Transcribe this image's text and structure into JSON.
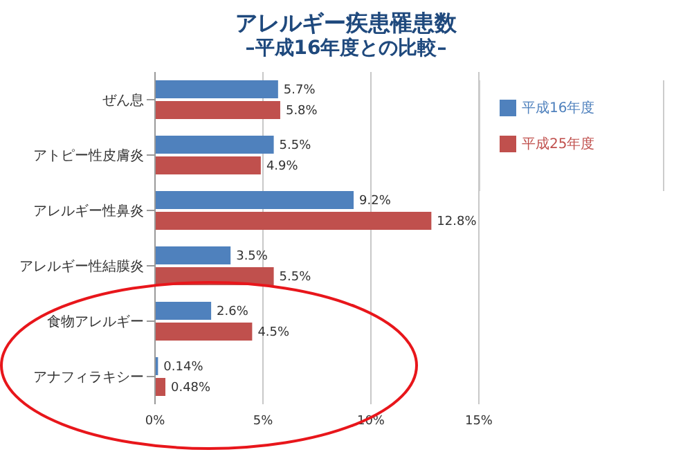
{
  "chart_data": {
    "type": "bar",
    "orientation": "horizontal",
    "title": "アレルギー疾患罹患数",
    "subtitle": "–平成16年度との比較–",
    "categories": [
      "ぜん息",
      "アトピー性皮膚炎",
      "アレルギー性鼻炎",
      "アレルギー性結膜炎",
      "食物アレルギー",
      "アナフィラキシー"
    ],
    "series": [
      {
        "name": "平成16年度",
        "color": "#4f81bd",
        "values": [
          5.7,
          5.5,
          9.2,
          3.5,
          2.6,
          0.14
        ],
        "value_labels": [
          "5.7%",
          "5.5%",
          "9.2%",
          "3.5%",
          "2.6%",
          "0.14%"
        ]
      },
      {
        "name": "平成25年度",
        "color": "#c0504d",
        "values": [
          5.8,
          4.9,
          12.8,
          5.5,
          4.5,
          0.48
        ],
        "value_labels": [
          "5.8%",
          "4.9%",
          "12.8%",
          "5.5%",
          "4.5%",
          "0.48%"
        ]
      }
    ],
    "xlim": [
      0,
      15
    ],
    "xticks": [
      {
        "value": 0,
        "label": "0%"
      },
      {
        "value": 5,
        "label": "5%"
      },
      {
        "value": 10,
        "label": "10%"
      },
      {
        "value": 15,
        "label": "15%"
      }
    ],
    "grid": "x",
    "legend": "top right"
  }
}
